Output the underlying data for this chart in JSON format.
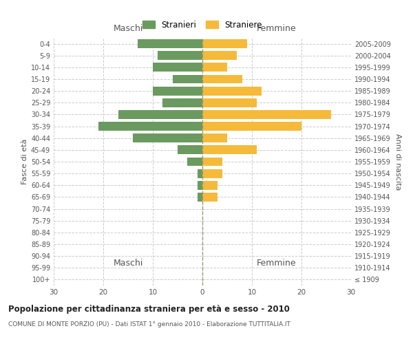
{
  "age_groups": [
    "100+",
    "95-99",
    "90-94",
    "85-89",
    "80-84",
    "75-79",
    "70-74",
    "65-69",
    "60-64",
    "55-59",
    "50-54",
    "45-49",
    "40-44",
    "35-39",
    "30-34",
    "25-29",
    "20-24",
    "15-19",
    "10-14",
    "5-9",
    "0-4"
  ],
  "birth_years": [
    "≤ 1909",
    "1910-1914",
    "1915-1919",
    "1920-1924",
    "1925-1929",
    "1930-1934",
    "1935-1939",
    "1940-1944",
    "1945-1949",
    "1950-1954",
    "1955-1959",
    "1960-1964",
    "1965-1969",
    "1970-1974",
    "1975-1979",
    "1980-1984",
    "1985-1989",
    "1990-1994",
    "1995-1999",
    "2000-2004",
    "2005-2009"
  ],
  "maschi": [
    0,
    0,
    0,
    0,
    0,
    0,
    0,
    1,
    1,
    1,
    3,
    5,
    14,
    21,
    17,
    8,
    10,
    6,
    10,
    9,
    13
  ],
  "femmine": [
    0,
    0,
    0,
    0,
    0,
    0,
    0,
    3,
    3,
    4,
    4,
    11,
    5,
    20,
    26,
    11,
    12,
    8,
    5,
    7,
    9
  ],
  "color_maschi": "#6a9a5f",
  "color_femmine": "#f5ba3a",
  "title": "Popolazione per cittadinanza straniera per età e sesso - 2010",
  "subtitle": "COMUNE DI MONTE PORZIO (PU) - Dati ISTAT 1° gennaio 2010 - Elaborazione TUTTITALIA.IT",
  "xlabel_left": "Maschi",
  "xlabel_right": "Femmine",
  "ylabel_left": "Fasce di età",
  "ylabel_right": "Anni di nascita",
  "legend_maschi": "Stranieri",
  "legend_femmine": "Straniere",
  "xlim": 30,
  "background_color": "#ffffff",
  "grid_color": "#cccccc"
}
